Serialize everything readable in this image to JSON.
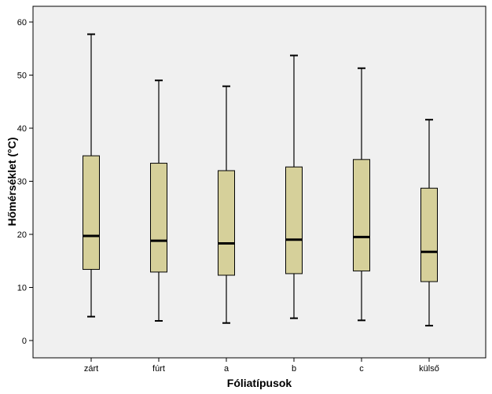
{
  "chart_data": {
    "type": "boxplot",
    "xlabel": "Fóliatípusok",
    "ylabel": "Hőmérséklet (°C)",
    "ylim": [
      -3,
      63
    ],
    "yticks": [
      0,
      10,
      20,
      30,
      40,
      50,
      60
    ],
    "grid": false,
    "background": "#f0f0f0",
    "box_color": "#d6d09a",
    "categories": [
      "zárt",
      "fúrt",
      "a",
      "b",
      "c",
      "külső"
    ],
    "boxes": [
      {
        "category": "zárt",
        "min": 4.5,
        "q1": 13.4,
        "median": 19.7,
        "q3": 34.8,
        "max": 57.7
      },
      {
        "category": "fúrt",
        "min": 3.7,
        "q1": 12.9,
        "median": 18.8,
        "q3": 33.4,
        "max": 49.0
      },
      {
        "category": "a",
        "min": 3.3,
        "q1": 12.3,
        "median": 18.3,
        "q3": 32.0,
        "max": 47.9
      },
      {
        "category": "b",
        "min": 4.2,
        "q1": 12.6,
        "median": 19.0,
        "q3": 32.7,
        "max": 53.7
      },
      {
        "category": "c",
        "min": 3.8,
        "q1": 13.1,
        "median": 19.5,
        "q3": 34.1,
        "max": 51.3
      },
      {
        "category": "külső",
        "min": 2.8,
        "q1": 11.1,
        "median": 16.7,
        "q3": 28.7,
        "max": 41.6
      }
    ]
  }
}
